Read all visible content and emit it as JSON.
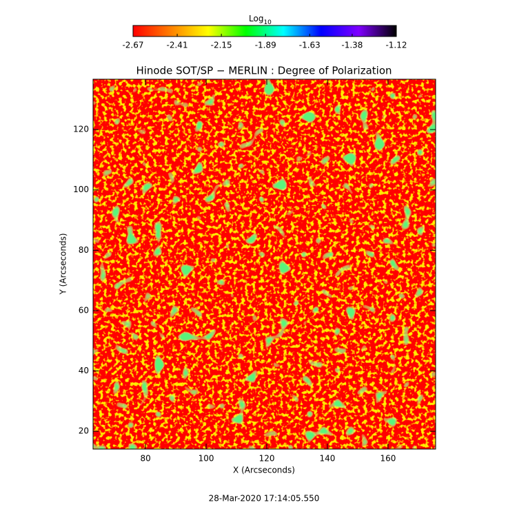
{
  "chart_data": {
    "type": "heatmap",
    "title": "Hinode SOT/SP − MERLIN : Degree of Polarization",
    "x_label": "X (Arcseconds)",
    "y_label": "Y (Arcseconds)",
    "footer": "28-Mar-2020 17:14:05.550",
    "xlim": [
      62.7,
      175.7
    ],
    "ylim": [
      14.1,
      136.7
    ],
    "xticks": [
      80,
      100,
      120,
      140,
      160
    ],
    "yticks": [
      20,
      40,
      60,
      80,
      100,
      120
    ],
    "colorbar": {
      "label": "Log",
      "label_sub": "10",
      "lim": [
        -2.67,
        -1.12
      ],
      "ticks": [
        -2.67,
        -2.41,
        -2.15,
        -1.89,
        -1.63,
        -1.38,
        -1.12
      ],
      "colormap": [
        "#ff0000",
        "#ff7f00",
        "#ffff00",
        "#00ff00",
        "#00ffff",
        "#0000ff",
        "#7f00ff",
        "#000000"
      ]
    }
  }
}
